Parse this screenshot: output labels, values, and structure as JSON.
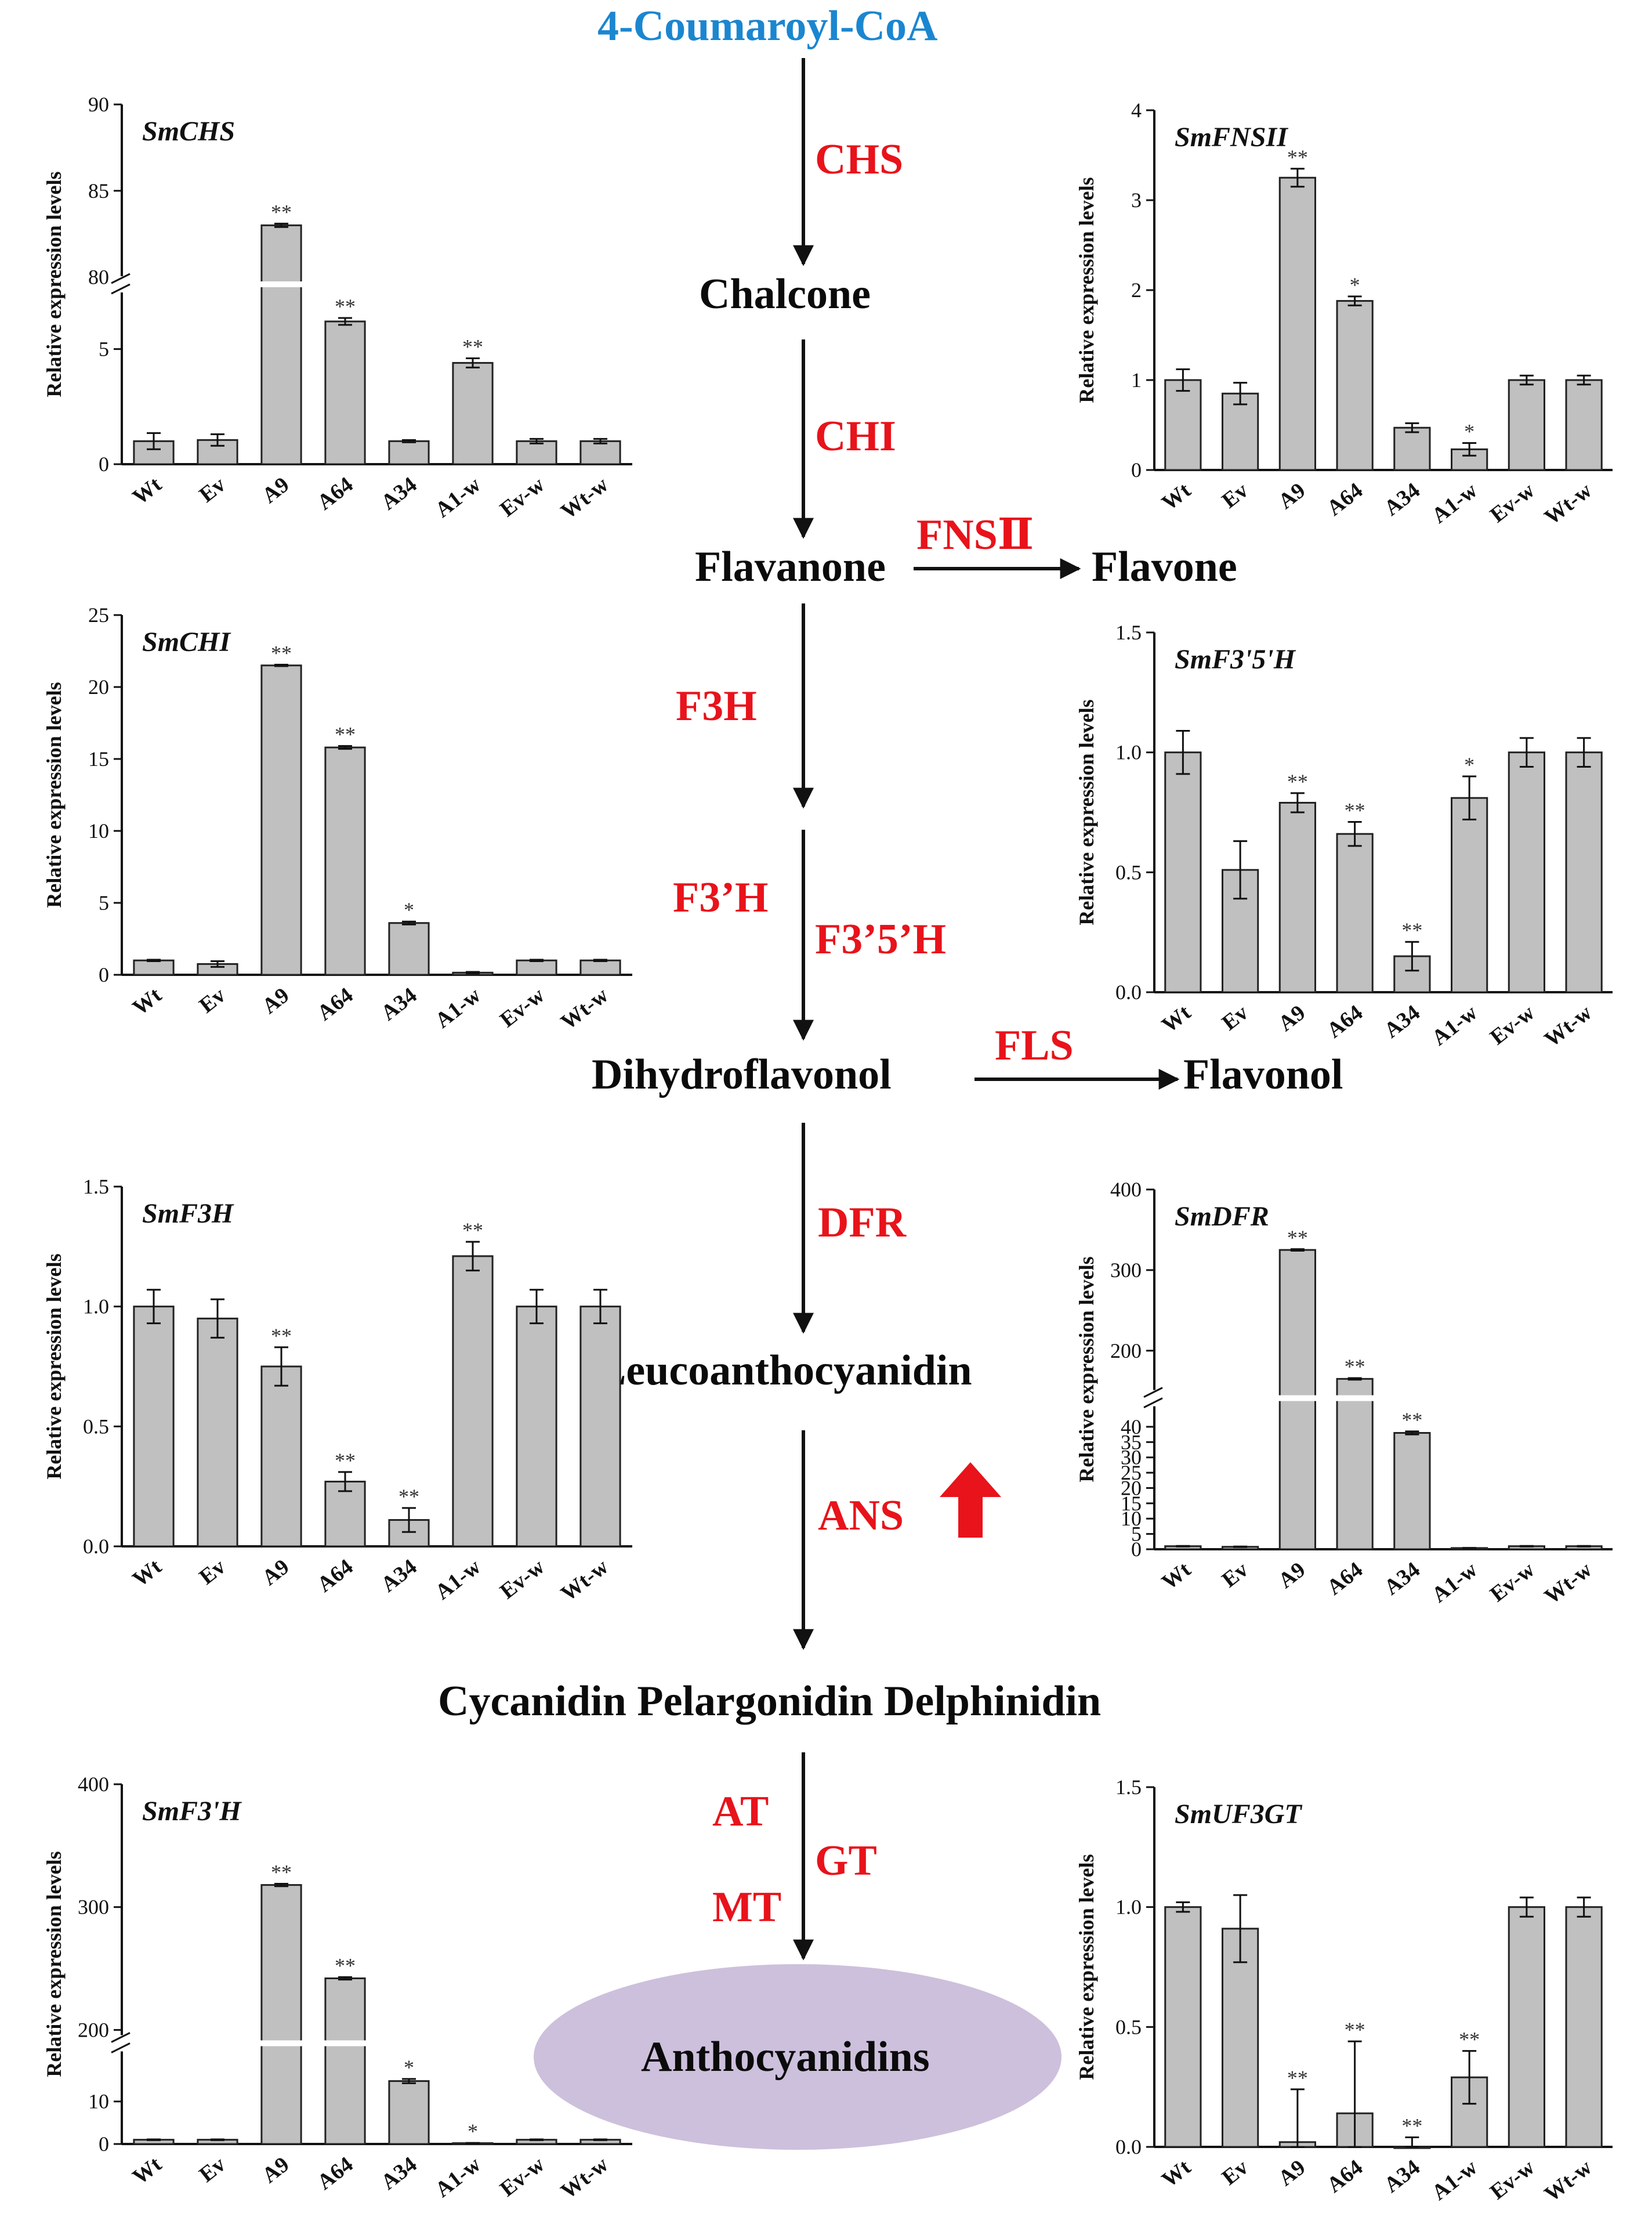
{
  "pathway": {
    "start": "4-Coumaroyl-CoA",
    "chalcone": "Chalcone",
    "flavanone": "Flavanone",
    "flavone": "Flavone",
    "dihydroflavonol": "Dihydroflavonol",
    "flavonol": "Flavonol",
    "leucoanthocyanidin": "Leucoanthocyanidin",
    "anthocyanidin_bases": "Cycanidin Pelargonidin Delphinidin",
    "anthocyanidins": "Anthocyanidins",
    "enzymes": {
      "chs": "CHS",
      "chi": "CHI",
      "fns": "FNSⅡ",
      "f3h": "F3H",
      "f3ph": "F3’H",
      "f35h": "F3’5’H",
      "fls": "FLS",
      "dfr": "DFR",
      "ans": "ANS",
      "at": "AT",
      "gt": "GT",
      "mt": "MT"
    },
    "colors": {
      "start": "#1b86d0",
      "enzyme": "#e8131b",
      "substance": "#0b0b0b",
      "ellipse": "#cdc0dc",
      "bar": "#c0c0c0"
    }
  },
  "chart_data": [
    {
      "type": "bar",
      "title": "SmCHS",
      "ylabel": "Relative expression levels",
      "categories": [
        "Wt",
        "Ev",
        "A9",
        "A64",
        "A34",
        "A1-w",
        "Ev-w",
        "Wt-w"
      ],
      "values": [
        1.0,
        1.05,
        83.0,
        6.2,
        1.0,
        4.4,
        1.0,
        1.0
      ],
      "errors": [
        0.35,
        0.25,
        0.1,
        0.15,
        0.05,
        0.2,
        0.1,
        0.1
      ],
      "significance": [
        "",
        "",
        "**",
        "**",
        "",
        "**",
        "",
        ""
      ],
      "axis_break": {
        "at": 7.5,
        "resume": 80
      },
      "ylim": [
        0,
        90
      ],
      "yticks": [
        "0",
        "5",
        "80",
        "85",
        "90"
      ]
    },
    {
      "type": "bar",
      "title": "SmFNSII",
      "ylabel": "Relative expression levels",
      "categories": [
        "Wt",
        "Ev",
        "A9",
        "A64",
        "A34",
        "A1-w",
        "Ev-w",
        "Wt-w"
      ],
      "values": [
        1.0,
        0.85,
        3.25,
        1.88,
        0.47,
        0.23,
        1.0,
        1.0
      ],
      "errors": [
        0.12,
        0.12,
        0.1,
        0.05,
        0.05,
        0.07,
        0.05,
        0.05
      ],
      "significance": [
        "",
        "",
        "**",
        "*",
        "",
        "*",
        "",
        ""
      ],
      "ylim": [
        0,
        4
      ],
      "yticks": [
        "0",
        "1",
        "2",
        "3",
        "4"
      ]
    },
    {
      "type": "bar",
      "title": "SmCHI",
      "ylabel": "Relative expression levels",
      "categories": [
        "Wt",
        "Ev",
        "A9",
        "A64",
        "A34",
        "A1-w",
        "Ev-w",
        "Wt-w"
      ],
      "values": [
        1.0,
        0.75,
        21.5,
        15.8,
        3.6,
        0.15,
        1.0,
        1.0
      ],
      "errors": [
        0.05,
        0.2,
        0.05,
        0.1,
        0.1,
        0.05,
        0.05,
        0.05
      ],
      "significance": [
        "",
        "",
        "**",
        "**",
        "*",
        "",
        "",
        ""
      ],
      "ylim": [
        0,
        25
      ],
      "yticks": [
        "0",
        "5",
        "10",
        "15",
        "20",
        "25"
      ]
    },
    {
      "type": "bar",
      "title": "SmF3'5'H",
      "ylabel": "Relative expression levels",
      "categories": [
        "Wt",
        "Ev",
        "A9",
        "A64",
        "A34",
        "A1-w",
        "Ev-w",
        "Wt-w"
      ],
      "values": [
        1.0,
        0.51,
        0.79,
        0.66,
        0.15,
        0.81,
        1.0,
        1.0
      ],
      "errors": [
        0.09,
        0.12,
        0.04,
        0.05,
        0.06,
        0.09,
        0.06,
        0.06
      ],
      "significance": [
        "",
        "",
        "**",
        "**",
        "**",
        "*",
        "",
        ""
      ],
      "ylim": [
        0,
        1.5
      ],
      "yticks": [
        "0.0",
        "0.5",
        "1.0",
        "1.5"
      ]
    },
    {
      "type": "bar",
      "title": "SmF3H",
      "ylabel": "Relative expression levels",
      "categories": [
        "Wt",
        "Ev",
        "A9",
        "A64",
        "A34",
        "A1-w",
        "Ev-w",
        "Wt-w"
      ],
      "values": [
        1.0,
        0.95,
        0.75,
        0.27,
        0.11,
        1.21,
        1.0,
        1.0
      ],
      "errors": [
        0.07,
        0.08,
        0.08,
        0.04,
        0.05,
        0.06,
        0.07,
        0.07
      ],
      "significance": [
        "",
        "",
        "**",
        "**",
        "**",
        "**",
        "",
        ""
      ],
      "ylim": [
        0,
        1.5
      ],
      "yticks": [
        "0.0",
        "0.5",
        "1.0",
        "1.5"
      ]
    },
    {
      "type": "bar",
      "title": "SmDFR",
      "ylabel": "Relative expression levels",
      "categories": [
        "Wt",
        "Ev",
        "A9",
        "A64",
        "A34",
        "A1-w",
        "Ev-w",
        "Wt-w"
      ],
      "values": [
        1.0,
        0.8,
        325,
        165,
        38,
        0.4,
        1.0,
        1.0
      ],
      "errors": [
        0.1,
        0.1,
        1,
        1,
        0.5,
        0.05,
        0.1,
        0.1
      ],
      "significance": [
        "",
        "",
        "**",
        "**",
        "**",
        "",
        "",
        ""
      ],
      "axis_break": {
        "at": 47,
        "resume": 150
      },
      "ylim": [
        0,
        400
      ],
      "yticks": [
        "0",
        "5",
        "10",
        "15",
        "20",
        "25",
        "30",
        "35",
        "40",
        "200",
        "300",
        "400"
      ]
    },
    {
      "type": "bar",
      "title": "SmF3'H",
      "ylabel": "Relative expression levels",
      "categories": [
        "Wt",
        "Ev",
        "A9",
        "A64",
        "A34",
        "A1-w",
        "Ev-w",
        "Wt-w"
      ],
      "values": [
        1.0,
        1.0,
        318,
        242,
        14.8,
        0.2,
        1.0,
        1.0
      ],
      "errors": [
        0.1,
        0.1,
        1,
        1,
        0.5,
        0.05,
        0.1,
        0.1
      ],
      "significance": [
        "",
        "",
        "**",
        "**",
        "*",
        "*",
        "",
        ""
      ],
      "axis_break": {
        "at": 22,
        "resume": 195
      },
      "ylim": [
        0,
        400
      ],
      "yticks": [
        "0",
        "10",
        "200",
        "300",
        "400"
      ]
    },
    {
      "type": "bar",
      "title": "SmUF3GT",
      "ylabel": "Relative expression levels",
      "categories": [
        "Wt",
        "Ev",
        "A9",
        "A64",
        "A34",
        "A1-w",
        "Ev-w",
        "Wt-w"
      ],
      "values": [
        1.0,
        0.91,
        0.02,
        0.14,
        0.0,
        0.29,
        1.0,
        1.0
      ],
      "errors": [
        0.02,
        0.14,
        0.22,
        0.3,
        0.04,
        0.11,
        0.04,
        0.04
      ],
      "significance": [
        "",
        "",
        "**",
        "**",
        "**",
        "**",
        "",
        ""
      ],
      "ylim": [
        0,
        1.5
      ],
      "yticks": [
        "0.0",
        "0.5",
        "1.0",
        "1.5"
      ]
    }
  ]
}
